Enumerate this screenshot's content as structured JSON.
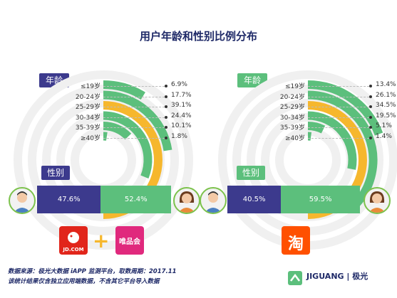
{
  "title": "用户年龄和性别比例分布",
  "labels": {
    "age": "年龄",
    "gender": "性别"
  },
  "chart_data": [
    {
      "type": "radial-bar",
      "platform_logos": [
        "JD.COM",
        "+",
        "唯品会"
      ],
      "categories": [
        "≤19岁",
        "20-24岁",
        "25-29岁",
        "30-34岁",
        "35-39岁",
        "≥40岁"
      ],
      "values": [
        6.9,
        17.7,
        39.1,
        24.4,
        10.1,
        1.8
      ],
      "value_labels": [
        "6.9%",
        "17.7%",
        "39.1%",
        "24.4%",
        "10.1%",
        "1.8%"
      ],
      "max_value": 39.1,
      "highlight": "25-29岁",
      "gender": {
        "male": 47.6,
        "female": 52.4,
        "male_label": "47.6%",
        "female_label": "52.4%"
      }
    },
    {
      "type": "radial-bar",
      "platform_logos": [
        "淘"
      ],
      "categories": [
        "≤19岁",
        "20-24岁",
        "25-29岁",
        "30-34岁",
        "35-39岁",
        "≥40岁"
      ],
      "values": [
        13.4,
        26.1,
        34.5,
        19.5,
        5.1,
        1.4
      ],
      "value_labels": [
        "13.4%",
        "26.1%",
        "34.5%",
        "19.5%",
        "5.1%",
        "1.4%"
      ],
      "max_value": 34.5,
      "highlight": "25-29岁",
      "gender": {
        "male": 40.5,
        "female": 59.5,
        "male_label": "40.5%",
        "female_label": "59.5%"
      }
    }
  ],
  "colors": {
    "highlight": "#f6b72d",
    "normal": "#5cbf7c",
    "male": "#3c3a8d",
    "female": "#5cbf7c",
    "navy": "#1f2a68"
  },
  "footer": {
    "line1": "数据来源：极光大数据 iAPP 监测平台，取数周期：2017.11",
    "line2": "该统计结果仅含独立应用端数据，不含其它平台导入数据",
    "brand": "JIGUANG | 极光"
  }
}
